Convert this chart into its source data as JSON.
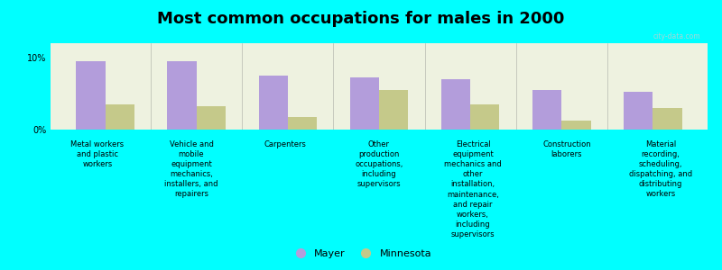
{
  "title": "Most common occupations for males in 2000",
  "background_color": "#00FFFF",
  "plot_bg_color": "#eef2e0",
  "categories": [
    "Metal workers\nand plastic\nworkers",
    "Vehicle and\nmobile\nequipment\nmechanics,\ninstallers, and\nrepairers",
    "Carpenters",
    "Other\nproduction\noccupations,\nincluding\nsupervisors",
    "Electrical\nequipment\nmechanics and\nother\ninstallation,\nmaintenance,\nand repair\nworkers,\nincluding\nsupervisors",
    "Construction\nlaborers",
    "Material\nrecording,\nscheduling,\ndispatching, and\ndistributing\nworkers"
  ],
  "mayer_values": [
    9.5,
    9.5,
    7.5,
    7.2,
    7.0,
    5.5,
    5.3
  ],
  "minnesota_values": [
    3.5,
    3.2,
    1.8,
    5.5,
    3.5,
    1.2,
    3.0
  ],
  "mayer_color": "#b39ddb",
  "minnesota_color": "#c5c98a",
  "ylim": [
    0,
    12
  ],
  "ytick_labels": [
    "0%",
    "10%"
  ],
  "legend_mayer": "Mayer",
  "legend_minnesota": "Minnesota",
  "bar_width": 0.32
}
